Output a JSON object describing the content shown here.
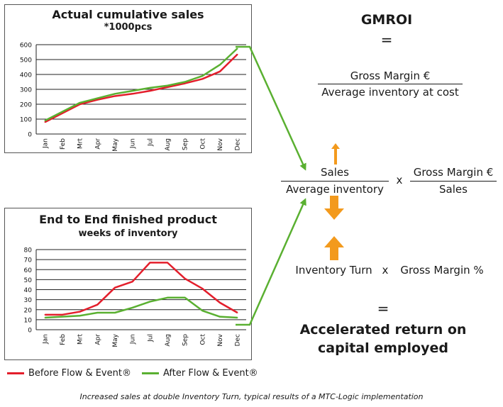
{
  "chart_data": [
    {
      "type": "line",
      "title": "Actual cumulative sales",
      "subtitle": "*1000pcs",
      "categories": [
        "Jan",
        "Feb",
        "Mrt",
        "Apr",
        "May",
        "Jun",
        "Jul",
        "Aug",
        "Sep",
        "Oct",
        "Nov",
        "Dec"
      ],
      "ylim": [
        0,
        600
      ],
      "yticks": [
        0,
        100,
        200,
        300,
        400,
        500,
        600
      ],
      "grid": true,
      "series": [
        {
          "name": "Before Flow & Event®",
          "color": "#e31e2b",
          "values": [
            80,
            140,
            200,
            230,
            255,
            270,
            290,
            315,
            340,
            370,
            420,
            535
          ]
        },
        {
          "name": "After Flow & Event®",
          "color": "#5ab031",
          "values": [
            90,
            150,
            210,
            240,
            270,
            290,
            310,
            325,
            350,
            390,
            465,
            575
          ]
        }
      ]
    },
    {
      "type": "line",
      "title": "End to End finished product",
      "subtitle": "weeks of inventory",
      "categories": [
        "Jan",
        "Feb",
        "Mrt",
        "Apr",
        "May",
        "Jun",
        "Jul",
        "Aug",
        "Sep",
        "Oct",
        "Nov",
        "Dec"
      ],
      "ylim": [
        0,
        80
      ],
      "yticks": [
        0,
        10,
        20,
        30,
        40,
        50,
        60,
        70,
        80
      ],
      "grid": true,
      "series": [
        {
          "name": "Before Flow & Event®",
          "color": "#e31e2b",
          "values": [
            15,
            15,
            18,
            25,
            42,
            48,
            67,
            67,
            51,
            41,
            27,
            17
          ]
        },
        {
          "name": "After Flow & Event®",
          "color": "#5ab031",
          "values": [
            12,
            13,
            14,
            17,
            17,
            22,
            28,
            32,
            32,
            19,
            13,
            12
          ]
        }
      ]
    }
  ],
  "formula": {
    "gmroi": "GMROI",
    "eq1": "=",
    "numerator1": "Gross Margin €",
    "denominator1": "Average inventory at cost",
    "sales": "Sales",
    "avg_inventory": "Average inventory",
    "times1": "x",
    "gross_margin": "Gross Margin €",
    "sales2": "Sales",
    "inventory_turn": "Inventory Turn",
    "times2": "x",
    "gross_margin_pct": "Gross Margin %",
    "eq2": "=",
    "result_line1": "Accelerated return on",
    "result_line2": "capital employed"
  },
  "legend": {
    "before": "Before Flow & Event®",
    "after": "After Flow & Event®"
  },
  "colors": {
    "red": "#e31e2b",
    "green": "#5ab031",
    "orange": "#f39a1d"
  },
  "caption": "Increased sales at double Inventory Turn, typical results of a MTC-Logic implementation"
}
